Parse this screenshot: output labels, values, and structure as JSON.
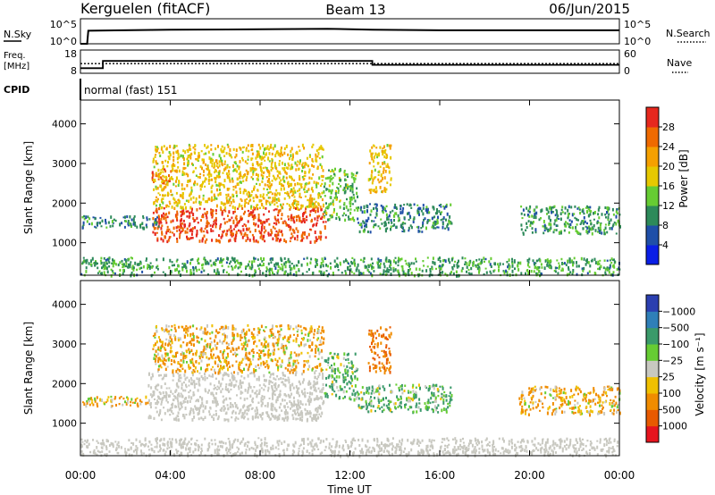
{
  "header": {
    "station": "Kerguelen (fitACF)",
    "beam": "Beam 13",
    "date": "06/Jun/2015"
  },
  "nsky_panel": {
    "left_label": "N.Sky",
    "left_ticks": [
      "10^5",
      "10^0"
    ],
    "right_label": "N.Search",
    "right_ticks": [
      "10^5",
      "10^0"
    ]
  },
  "freq_panel": {
    "left_label_line1": "Freq.",
    "left_label_line2": "[MHz]",
    "left_ticks": [
      "18",
      "8"
    ],
    "right_label": "Nave",
    "right_ticks": [
      "60",
      "0"
    ]
  },
  "cpid": {
    "label": "CPID",
    "mode": "normal (fast) 151"
  },
  "x_axis": {
    "label": "Time UT",
    "ticks": [
      "00:00",
      "04:00",
      "08:00",
      "12:00",
      "16:00",
      "20:00",
      "00:00"
    ],
    "range_hours": [
      0,
      24
    ]
  },
  "power_panel": {
    "ylabel": "Slant Range [km]",
    "yticks": [
      "1000",
      "2000",
      "3000",
      "4000"
    ],
    "colorbar_label": "Power [dB]",
    "colorbar_ticks": [
      "4",
      "8",
      "12",
      "16",
      "20",
      "24",
      "28"
    ]
  },
  "velocity_panel": {
    "ylabel": "Slant Range [km]",
    "yticks": [
      "1000",
      "2000",
      "3000",
      "4000"
    ],
    "colorbar_label": "Velocity [m s⁻¹]",
    "colorbar_ticks": [
      "1000",
      "500",
      "100",
      "25",
      "−25",
      "−100",
      "−500",
      "−1000"
    ]
  },
  "colors": {
    "power_scale": [
      "#0a1ee6",
      "#1f4fa8",
      "#2d8a5a",
      "#66cc33",
      "#e6c800",
      "#f5a000",
      "#ef6a00",
      "#e6281e"
    ],
    "velocity_scale": [
      "#2b3fb0",
      "#2f7fb8",
      "#3a9a6a",
      "#66cc33",
      "#c8c8c0",
      "#f0c000",
      "#f08c00",
      "#e85a00",
      "#e6141e"
    ],
    "ground_scatter": "#c8c8c0"
  },
  "chart_data": [
    {
      "type": "heatmap",
      "name": "power",
      "x_range_hours": [
        0,
        24
      ],
      "y_range_km": [
        180,
        4600
      ],
      "value_range_db": [
        0,
        30
      ],
      "regions": [
        {
          "t": [
            3.2,
            10.9
          ],
          "r": [
            1050,
            1900
          ],
          "power_db": 28
        },
        {
          "t": [
            3.1,
            4.0
          ],
          "r": [
            2500,
            2900
          ],
          "power_db": 27
        },
        {
          "t": [
            3.2,
            10.8
          ],
          "r": [
            1900,
            3500
          ],
          "power_db": 18
        },
        {
          "t": [
            10.8,
            12.3
          ],
          "r": [
            1600,
            2900
          ],
          "power_db": 12
        },
        {
          "t": [
            12.3,
            16.5
          ],
          "r": [
            1300,
            2000
          ],
          "power_db": 8
        },
        {
          "t": [
            12.8,
            13.8
          ],
          "r": [
            2300,
            3500
          ],
          "power_db": 18
        },
        {
          "t": [
            0.0,
            3.5
          ],
          "r": [
            1400,
            1700
          ],
          "power_db": 8
        },
        {
          "t": [
            19.5,
            24.0
          ],
          "r": [
            1250,
            1950
          ],
          "power_db": 9
        },
        {
          "t": [
            0.0,
            24.0
          ],
          "r": [
            200,
            650
          ],
          "power_db": 10
        }
      ]
    },
    {
      "type": "heatmap",
      "name": "velocity",
      "x_range_hours": [
        0,
        24
      ],
      "y_range_km": [
        180,
        4600
      ],
      "value_range_ms": [
        -1000,
        1000
      ],
      "regions": [
        {
          "t": [
            3.0,
            10.8
          ],
          "r": [
            1100,
            2300
          ],
          "velocity_ms": 0,
          "ground_scatter": true
        },
        {
          "t": [
            3.2,
            10.8
          ],
          "r": [
            2300,
            3500
          ],
          "velocity_ms": -100
        },
        {
          "t": [
            0.0,
            3.0
          ],
          "r": [
            1450,
            1700
          ],
          "velocity_ms": -100
        },
        {
          "t": [
            10.8,
            12.3
          ],
          "r": [
            1600,
            2800
          ],
          "velocity_ms": 100
        },
        {
          "t": [
            12.3,
            16.5
          ],
          "r": [
            1300,
            2000
          ],
          "velocity_ms": 100
        },
        {
          "t": [
            12.8,
            13.8
          ],
          "r": [
            2300,
            3500
          ],
          "velocity_ms": -500
        },
        {
          "t": [
            19.5,
            24.0
          ],
          "r": [
            1250,
            1950
          ],
          "velocity_ms": -100
        },
        {
          "t": [
            0.0,
            24.0
          ],
          "r": [
            200,
            650
          ],
          "velocity_ms": 0,
          "ground_scatter": true
        }
      ]
    },
    {
      "type": "line",
      "name": "n_sky",
      "x_hours": [
        0,
        0.3,
        0.35,
        4,
        8,
        11,
        13,
        16,
        20,
        24
      ],
      "level_log10": [
        0,
        0,
        2.6,
        2.8,
        2.9,
        3.0,
        2.8,
        2.7,
        2.7,
        2.7
      ]
    },
    {
      "type": "line",
      "name": "frequency_mhz",
      "x_hours": [
        0,
        1.0,
        1.0,
        13.0,
        13.0,
        24
      ],
      "values": [
        10.2,
        10.2,
        13.3,
        13.3,
        11.6,
        11.6
      ]
    },
    {
      "type": "line",
      "name": "nave",
      "x_hours": [
        0,
        24
      ],
      "values": [
        25,
        25
      ]
    }
  ]
}
